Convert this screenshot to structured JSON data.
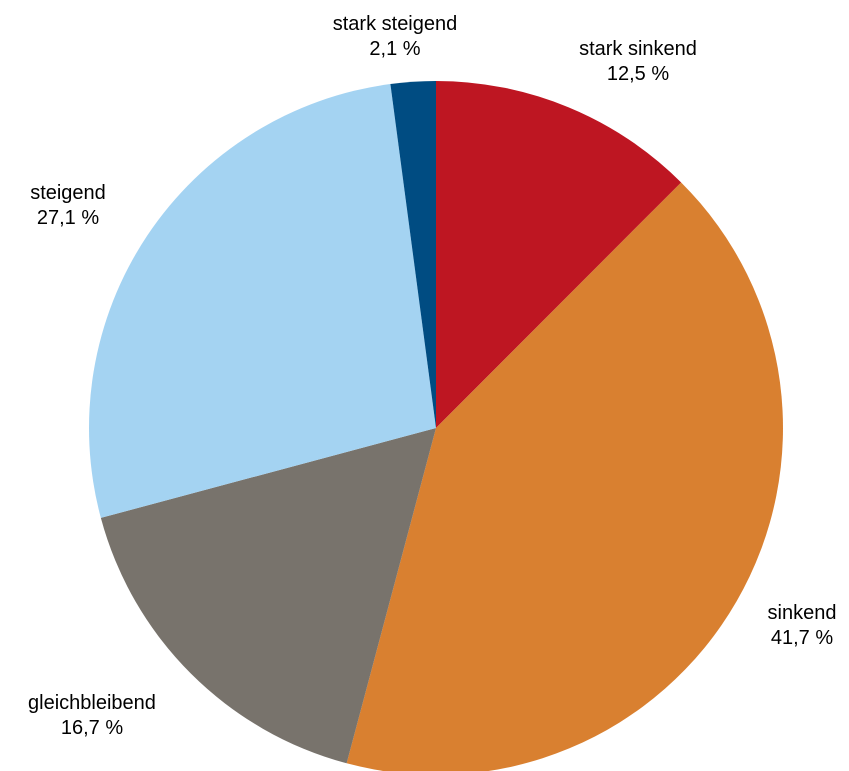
{
  "chart_data": {
    "type": "pie",
    "title": "",
    "start_angle_deg": 0,
    "direction": "clockwise",
    "slices": [
      {
        "name": "stark sinkend",
        "value": 12.5,
        "label": "12,5 %",
        "color": "#BE1622"
      },
      {
        "name": "sinkend",
        "value": 41.7,
        "label": "41,7 %",
        "color": "#D98030"
      },
      {
        "name": "gleichbleibend",
        "value": 16.7,
        "label": "16,7 %",
        "color": "#78736C"
      },
      {
        "name": "steigend",
        "value": 27.1,
        "label": "27,1 %",
        "color": "#A4D3F2"
      },
      {
        "name": "stark steigend",
        "value": 2.1,
        "label": "2,1 %",
        "color": "#004C82"
      }
    ]
  }
}
